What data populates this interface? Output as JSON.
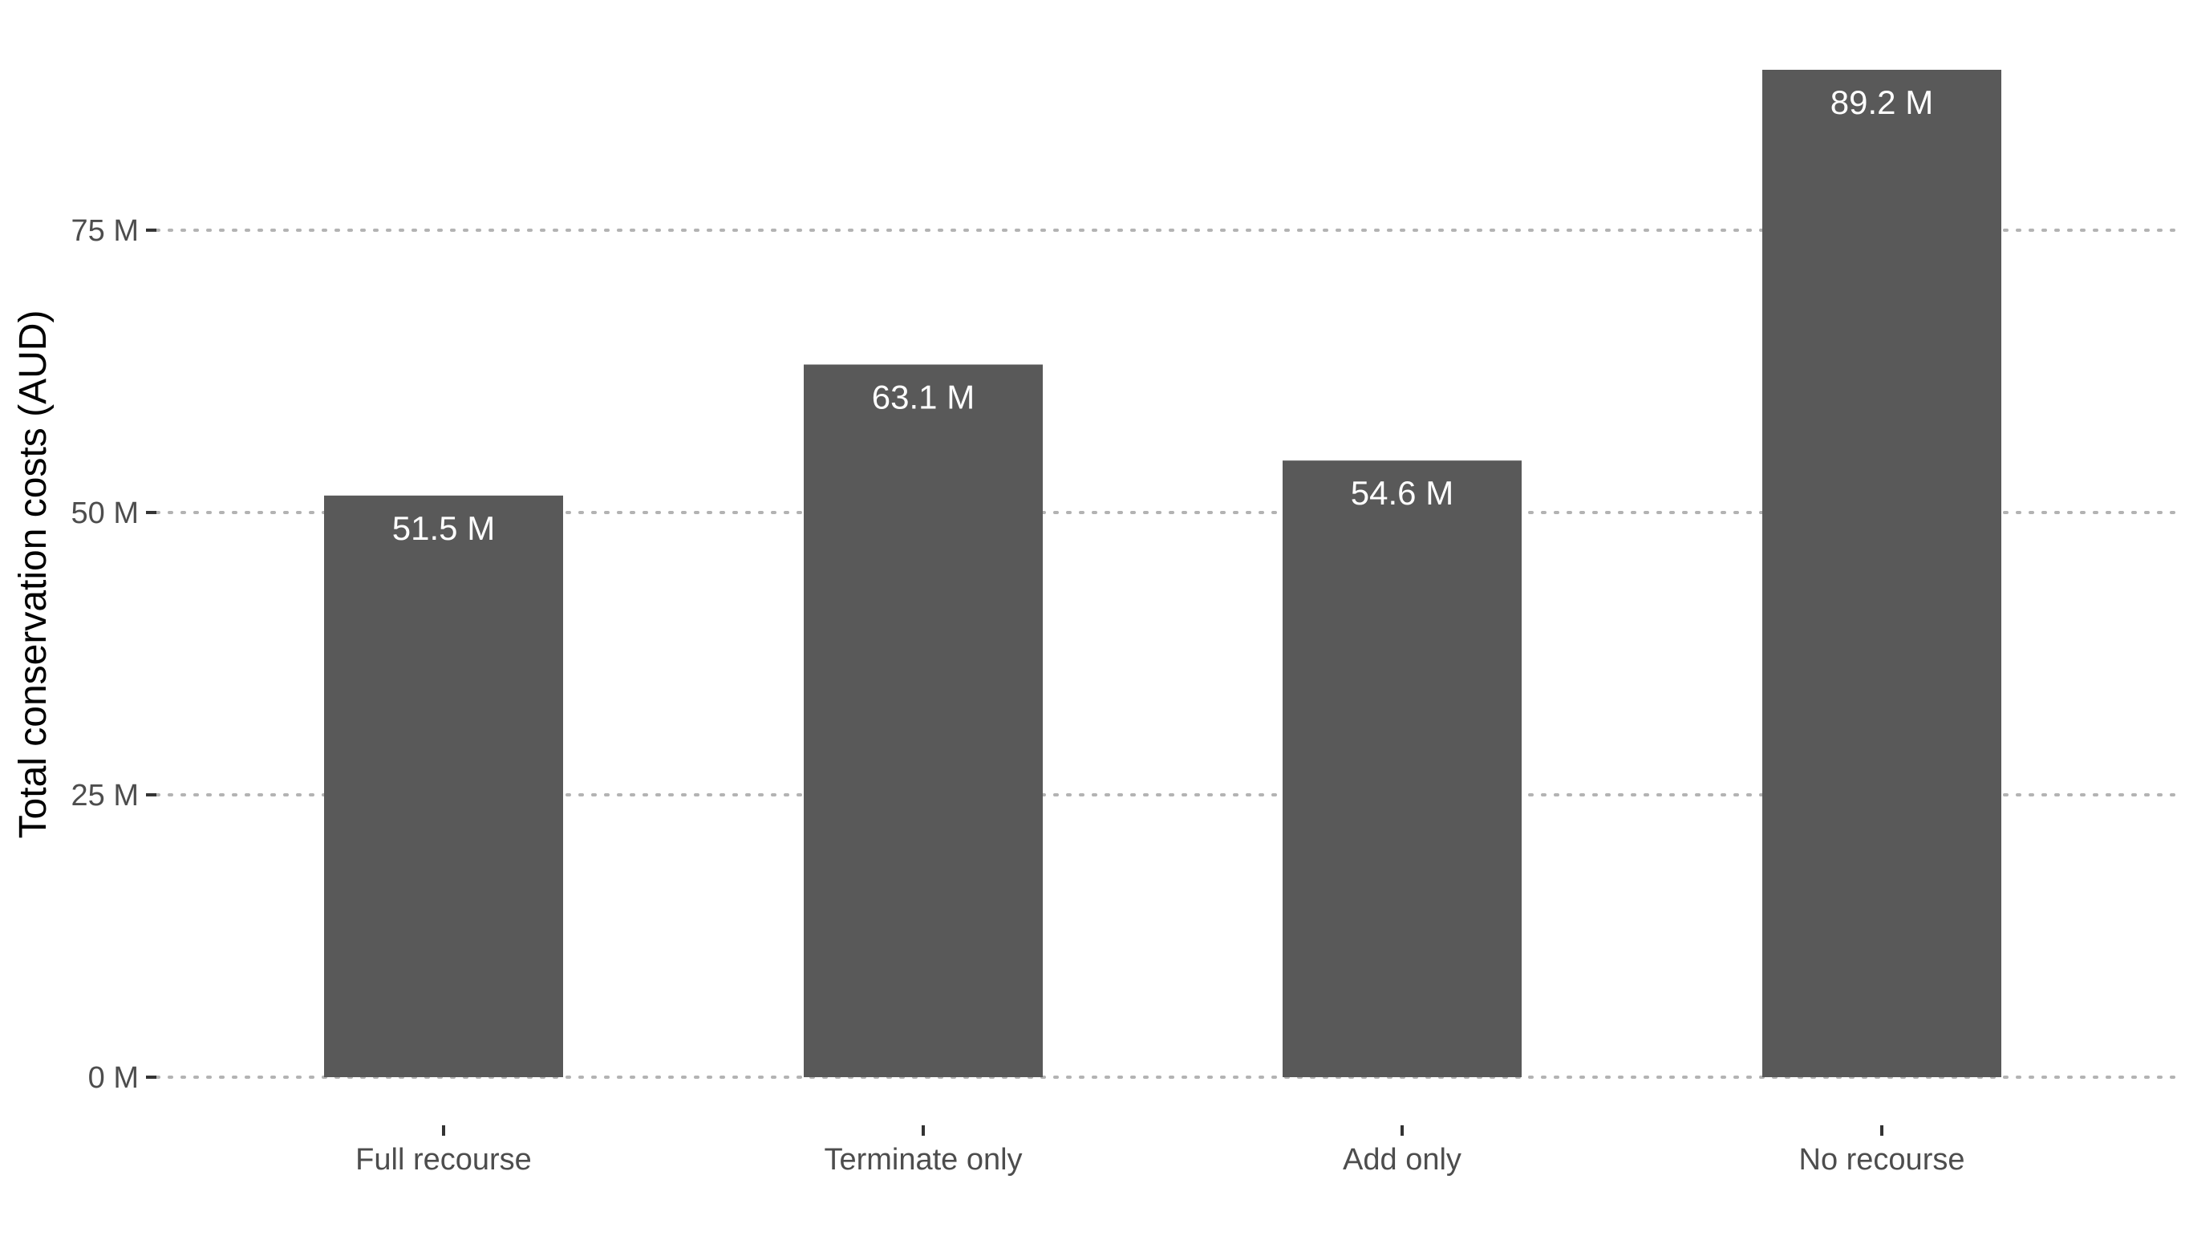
{
  "chart_data": {
    "type": "bar",
    "categories": [
      "Full recourse",
      "Terminate only",
      "Add only",
      "No recourse"
    ],
    "values": [
      51.5,
      63.1,
      54.6,
      89.2
    ],
    "value_labels": [
      "51.5 M",
      "63.1 M",
      "54.6 M",
      "89.2 M"
    ],
    "ylabel": "Total conservation costs (AUD)",
    "xlabel": "",
    "yticks": [
      0,
      25,
      50,
      75
    ],
    "ytick_labels": [
      "0 M",
      "25 M",
      "50 M",
      "75 M"
    ],
    "ylim": [
      0,
      89.2
    ],
    "grid": "horizontal dotted",
    "bar_color": "#595959",
    "label_color": "#ffffff"
  }
}
